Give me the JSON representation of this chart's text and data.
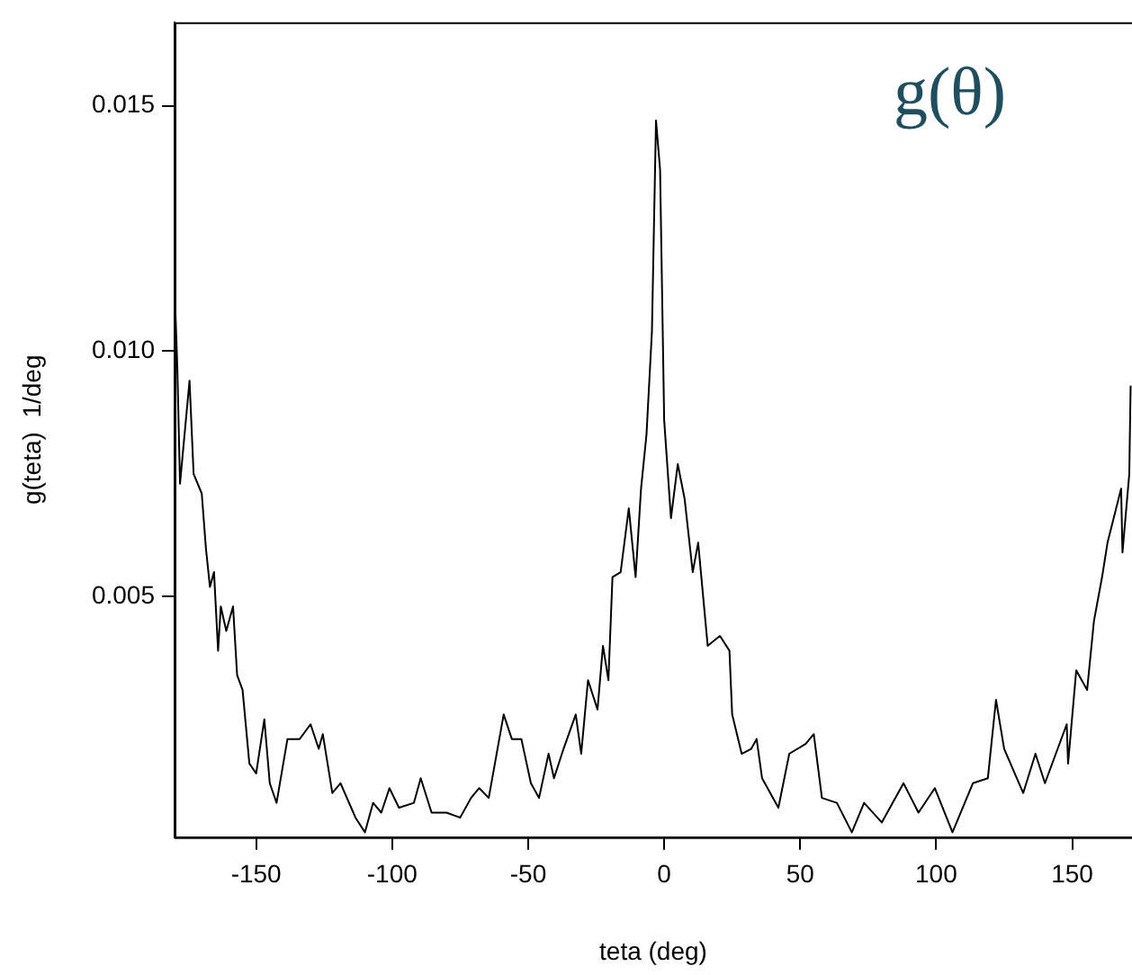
{
  "chart_data": {
    "type": "line",
    "title": "g(θ)",
    "xlabel": "teta (deg)",
    "ylabel": "g(teta)  1/deg",
    "xlim": [
      -180,
      172
    ],
    "ylim": [
      0.0001,
      0.0167
    ],
    "xticks": [
      -150,
      -100,
      -50,
      0,
      50,
      100,
      150
    ],
    "yticks": [
      {
        "value": 0.005,
        "label": "0.005"
      },
      {
        "value": 0.01,
        "label": "0.010"
      },
      {
        "value": 0.015,
        "label": "0.015"
      }
    ],
    "grid": false,
    "legend": false,
    "marker": "none",
    "line_style": "solid",
    "series": [
      {
        "color": "#000000",
        "x": [
          -180,
          -179,
          -178,
          -176.5,
          -174.5,
          -173,
          -170,
          -168.5,
          -167,
          -165.5,
          -164,
          -163,
          -161,
          -158.5,
          -157,
          -155,
          -152.5,
          -150,
          -147,
          -145,
          -142.5,
          -138.5,
          -134,
          -130,
          -127,
          -125.5,
          -122,
          -119,
          -113.5,
          -110,
          -107,
          -104,
          -101,
          -97.5,
          -92,
          -89.5,
          -85.5,
          -80,
          -75,
          -71,
          -68,
          -64.5,
          -59,
          -56,
          -52.5,
          -49,
          -46,
          -42.5,
          -40.5,
          -37,
          -32.5,
          -30.5,
          -28,
          -24.5,
          -22.5,
          -20.5,
          -19,
          -16,
          -13,
          -10.5,
          -8.5,
          -6.5,
          -4.5,
          -3,
          -1.5,
          0,
          2.5,
          5,
          7.5,
          10.5,
          12.5,
          16,
          20.5,
          24,
          25,
          28.5,
          32,
          34,
          36,
          42,
          46,
          52,
          55,
          58,
          63.5,
          69,
          73.5,
          80,
          88,
          93.5,
          99.5,
          106,
          113.5,
          119,
          122,
          125,
          132,
          136.5,
          140,
          148,
          148.5,
          151.5,
          155.5,
          158,
          161,
          163,
          168,
          168.5,
          171,
          171.5
        ],
        "values": [
          0.0113,
          0.0097,
          0.0073,
          0.0082,
          0.0094,
          0.0075,
          0.0071,
          0.006,
          0.0052,
          0.0055,
          0.0039,
          0.0048,
          0.0043,
          0.0048,
          0.0034,
          0.0031,
          0.0016,
          0.0014,
          0.0025,
          0.0012,
          0.0008,
          0.0021,
          0.0021,
          0.0024,
          0.0019,
          0.0022,
          0.001,
          0.0012,
          0.0005,
          0.0002,
          0.0008,
          0.0006,
          0.0011,
          0.0007,
          0.0008,
          0.0013,
          0.0006,
          0.0006,
          0.0005,
          0.0009,
          0.0011,
          0.0009,
          0.0026,
          0.0021,
          0.0021,
          0.0012,
          0.0009,
          0.0018,
          0.0013,
          0.0019,
          0.0026,
          0.0018,
          0.0033,
          0.0027,
          0.004,
          0.0033,
          0.0054,
          0.0055,
          0.0068,
          0.0054,
          0.0072,
          0.0083,
          0.0104,
          0.0147,
          0.0137,
          0.0086,
          0.0066,
          0.0077,
          0.007,
          0.0055,
          0.0061,
          0.004,
          0.0042,
          0.0039,
          0.0026,
          0.0018,
          0.0019,
          0.0021,
          0.0013,
          0.0007,
          0.0018,
          0.002,
          0.0022,
          0.0009,
          0.0008,
          0.0002,
          0.0008,
          0.0004,
          0.0012,
          0.0006,
          0.0011,
          0.0002,
          0.0012,
          0.0013,
          0.0029,
          0.0019,
          0.001,
          0.0018,
          0.0012,
          0.0024,
          0.0016,
          0.0035,
          0.0031,
          0.0045,
          0.0054,
          0.0061,
          0.0072,
          0.0059,
          0.0075,
          0.0093
        ]
      }
    ]
  }
}
